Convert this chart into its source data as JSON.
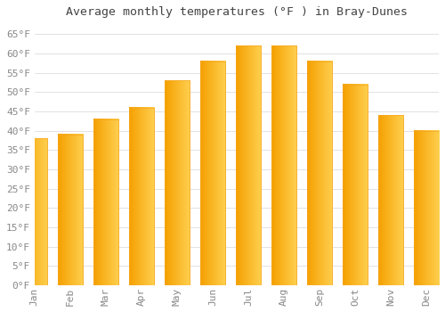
{
  "title": "Average monthly temperatures (°F ) in Bray-Dunes",
  "months": [
    "Jan",
    "Feb",
    "Mar",
    "Apr",
    "May",
    "Jun",
    "Jul",
    "Aug",
    "Sep",
    "Oct",
    "Nov",
    "Dec"
  ],
  "values": [
    38,
    39,
    43,
    46,
    53,
    58,
    62,
    62,
    58,
    52,
    44,
    40
  ],
  "bar_color": "#FFBE00",
  "bar_edge_color": "#F5A623",
  "bar_gradient_left": "#FFA500",
  "background_color": "#FFFFFF",
  "grid_color": "#DDDDDD",
  "ylim": [
    0,
    68
  ],
  "yticks": [
    0,
    5,
    10,
    15,
    20,
    25,
    30,
    35,
    40,
    45,
    50,
    55,
    60,
    65
  ],
  "tick_label_color": "#888888",
  "title_color": "#444444",
  "title_fontsize": 9.5
}
